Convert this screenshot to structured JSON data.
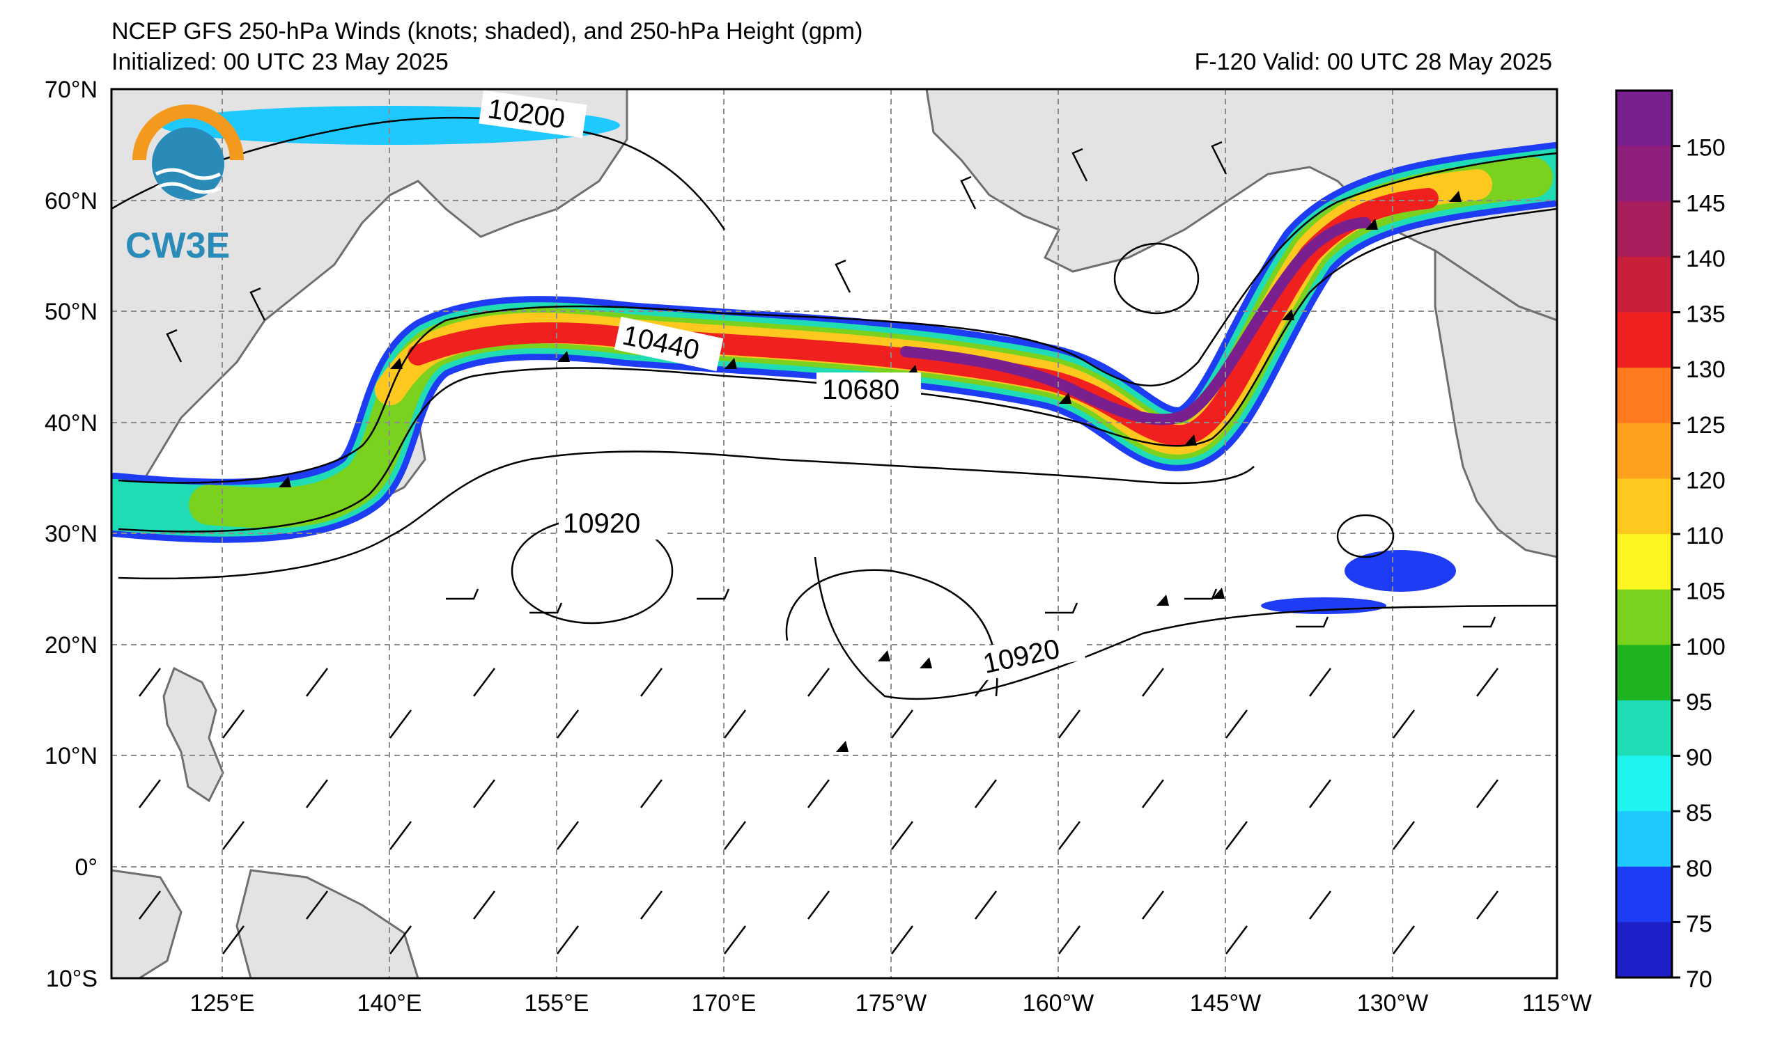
{
  "header": {
    "title": "NCEP GFS 250-hPa Winds (knots; shaded), and 250-hPa Height (gpm)",
    "initialized": "Initialized: 00 UTC 23 May 2025",
    "valid": "F-120  Valid: 00 UTC 28 May 2025"
  },
  "logo": {
    "text": "CW3E",
    "colors": {
      "ring": "#f39a1e",
      "water": "#2a8bb8"
    }
  },
  "map": {
    "lat_labels": [
      "70°N",
      "60°N",
      "50°N",
      "40°N",
      "30°N",
      "20°N",
      "10°N",
      "0°",
      "10°S"
    ],
    "lon_labels": [
      "125°E",
      "140°E",
      "155°E",
      "170°E",
      "175°W",
      "160°W",
      "145°W",
      "130°W",
      "115°W"
    ],
    "contour_labels": [
      "10200",
      "10440",
      "10680",
      "10920",
      "10920"
    ],
    "land_color": "#e3e3e3",
    "coast_color": "#6e6e6e"
  },
  "colorbar": {
    "ticks": [
      "150",
      "145",
      "140",
      "135",
      "130",
      "125",
      "120",
      "110",
      "105",
      "100",
      "95",
      "90",
      "85",
      "80",
      "75",
      "70"
    ],
    "colors": [
      "#7a1f8e",
      "#8e1f7a",
      "#a81f5e",
      "#c81f3a",
      "#f0201f",
      "#ff7a1f",
      "#ffa01f",
      "#ffc81f",
      "#fff51f",
      "#7ad21f",
      "#1fb41f",
      "#1fdcb4",
      "#1ff5f0",
      "#1fc8ff",
      "#1f3cf5",
      "#1f1fc8"
    ]
  }
}
